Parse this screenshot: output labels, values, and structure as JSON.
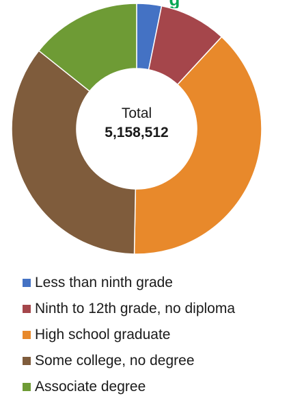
{
  "chart_data": {
    "type": "pie",
    "donut": true,
    "title_fragment": "g",
    "center": {
      "label": "Total",
      "value": "5,158,512"
    },
    "slices": [
      {
        "label": "Less than ninth grade",
        "value": 3.2,
        "color": "#4472c4"
      },
      {
        "label": "Ninth to 12th grade, no diploma",
        "value": 8.7,
        "color": "#a5464b"
      },
      {
        "label": "High school graduate",
        "value": 38.4,
        "color": "#e8892b"
      },
      {
        "label": "Some college, no degree",
        "value": 35.4,
        "color": "#7f5c3c"
      },
      {
        "label": "Associate degree",
        "value": 14.3,
        "color": "#6e9b35"
      }
    ],
    "legend_position": "bottom"
  }
}
